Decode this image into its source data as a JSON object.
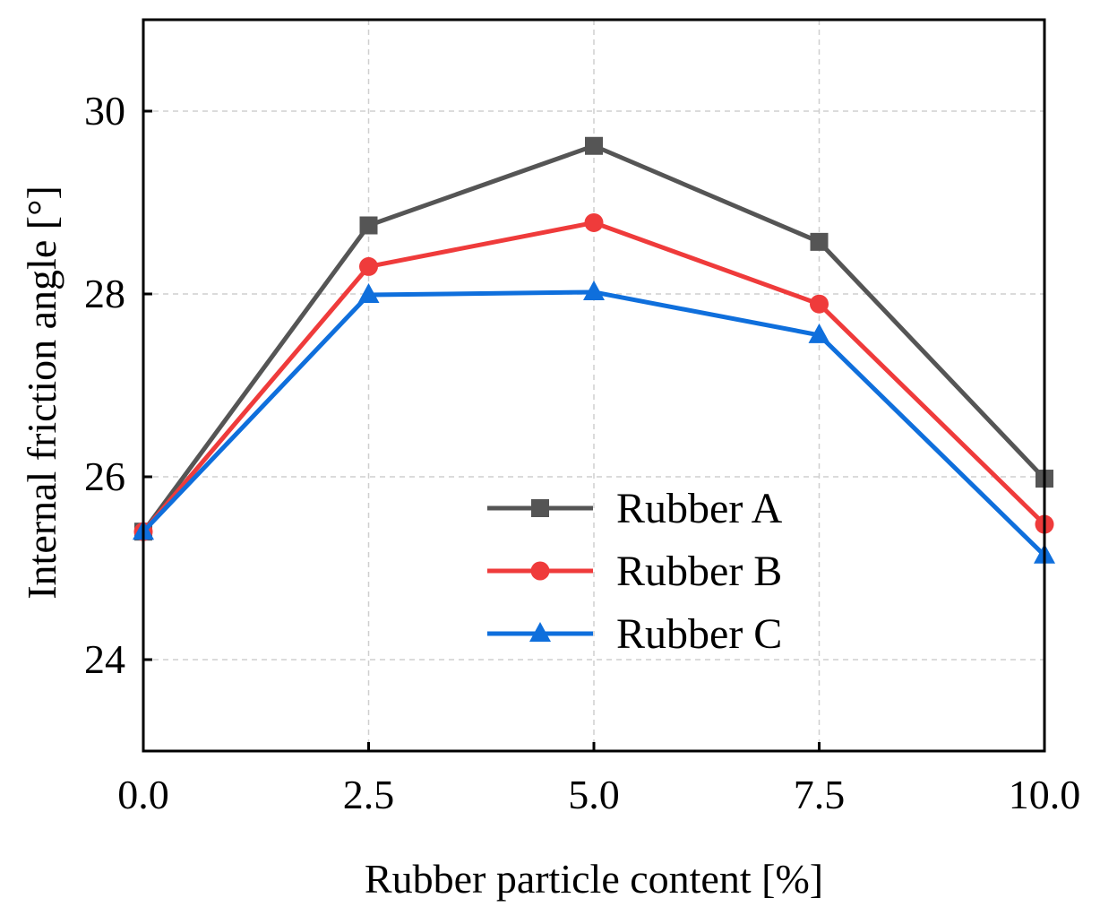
{
  "chart_data": {
    "type": "line",
    "title": "",
    "xlabel": "Rubber particle content [%]",
    "ylabel": "Internal friction angle [°]",
    "x": [
      0.0,
      2.5,
      5.0,
      7.5,
      10.0
    ],
    "xlim": [
      0.0,
      10.0
    ],
    "ylim": [
      23.0,
      31.0
    ],
    "x_ticks": [
      0.0,
      2.5,
      5.0,
      7.5,
      10.0
    ],
    "x_tick_labels": [
      "0.0",
      "2.5",
      "5.0",
      "7.5",
      "10.0"
    ],
    "y_ticks": [
      24,
      26,
      28,
      30
    ],
    "y_tick_labels": [
      "24",
      "26",
      "28",
      "30"
    ],
    "grid": true,
    "legend_position": "lower-right",
    "series": [
      {
        "name": "Rubber A",
        "values": [
          25.4,
          28.75,
          29.62,
          28.57,
          25.98
        ],
        "color": "#555555",
        "marker": "square"
      },
      {
        "name": "Rubber B",
        "values": [
          25.4,
          28.3,
          28.78,
          27.89,
          25.48
        ],
        "color": "#ef3b3b",
        "marker": "circle"
      },
      {
        "name": "Rubber C",
        "values": [
          25.4,
          27.99,
          28.02,
          27.55,
          25.14
        ],
        "color": "#0f6fdc",
        "marker": "triangle"
      }
    ]
  }
}
